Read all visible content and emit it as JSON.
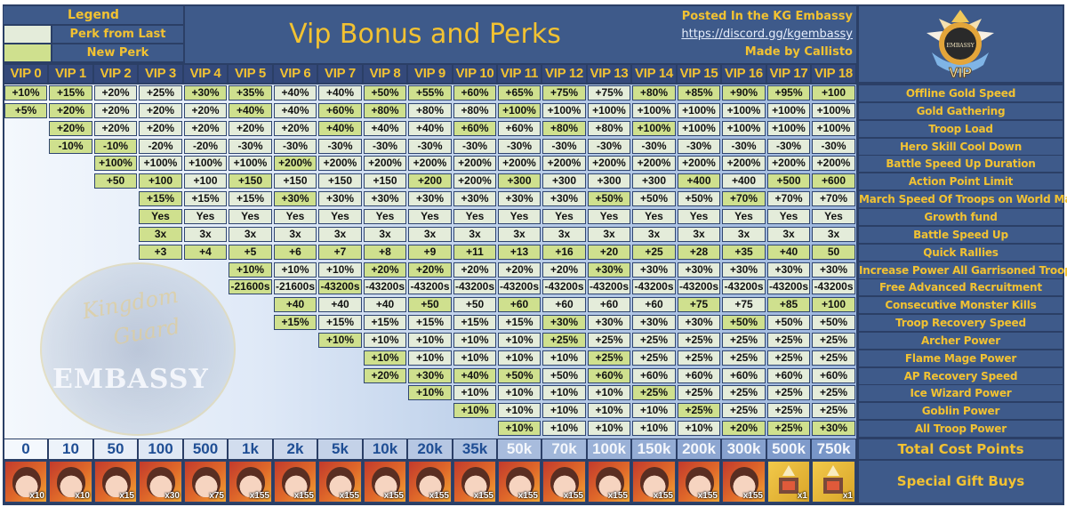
{
  "legend": {
    "title": "Legend",
    "items": [
      {
        "label": "Perk from Last level",
        "color": "#e4ecda"
      },
      {
        "label": "New Perk",
        "color": "#cfe08e"
      }
    ]
  },
  "header": {
    "title": "Vip Bonus and Perks",
    "posted": "Posted In the KG Embassy",
    "link": "https://discord.gg/kgembassy",
    "author": "Made by Callisto",
    "logo_text": "VIP",
    "logo_sub": "EMBASSY"
  },
  "watermark": {
    "line1": "Kingdom",
    "line2": "Guard",
    "line3": "EMBASSY"
  },
  "colors": {
    "new_perk": "#cfe08e",
    "last_level": "#e4ecda",
    "header_bg": "#3e5a8a",
    "accent_text": "#f2c232",
    "cost_text": "#1f4e94"
  },
  "vip_levels": [
    "VIP 0",
    "VIP 1",
    "VIP 2",
    "VIP 3",
    "VIP 4",
    "VIP 5",
    "VIP 6",
    "VIP 7",
    "VIP 8",
    "VIP 9",
    "VIP 10",
    "VIP 11",
    "VIP 12",
    "VIP 13",
    "VIP 14",
    "VIP 15",
    "VIP 16",
    "VIP 17",
    "VIP 18"
  ],
  "perks": [
    {
      "label": "Offline Gold Speed",
      "start": 0,
      "values": [
        "+10%",
        "+15%",
        "+20%",
        "+25%",
        "+30%",
        "+35%",
        "+40%",
        "+40%",
        "+50%",
        "+55%",
        "+60%",
        "+65%",
        "+75%",
        "+75%",
        "+80%",
        "+85%",
        "+90%",
        "+95%",
        "+100"
      ],
      "new": [
        1,
        1,
        0,
        0,
        1,
        1,
        0,
        0,
        1,
        1,
        1,
        1,
        1,
        0,
        1,
        1,
        1,
        1,
        1
      ]
    },
    {
      "label": "Gold Gathering",
      "start": 0,
      "values": [
        "+5%",
        "+20%",
        "+20%",
        "+20%",
        "+20%",
        "+40%",
        "+40%",
        "+60%",
        "+80%",
        "+80%",
        "+80%",
        "+100%",
        "+100%",
        "+100%",
        "+100%",
        "+100%",
        "+100%",
        "+100%",
        "+100%"
      ],
      "new": [
        1,
        1,
        0,
        0,
        0,
        1,
        0,
        1,
        1,
        0,
        0,
        1,
        0,
        0,
        0,
        0,
        0,
        0,
        0
      ]
    },
    {
      "label": "Troop Load",
      "start": 1,
      "values": [
        "+20%",
        "+20%",
        "+20%",
        "+20%",
        "+20%",
        "+20%",
        "+40%",
        "+40%",
        "+40%",
        "+60%",
        "+60%",
        "+80%",
        "+80%",
        "+100%",
        "+100%",
        "+100%",
        "+100%",
        "+100%"
      ],
      "new": [
        1,
        0,
        0,
        0,
        0,
        0,
        1,
        0,
        0,
        1,
        0,
        1,
        0,
        1,
        0,
        0,
        0,
        0
      ]
    },
    {
      "label": "Hero Skill Cool Down",
      "start": 1,
      "values": [
        "-10%",
        "-10%",
        "-20%",
        "-20%",
        "-30%",
        "-30%",
        "-30%",
        "-30%",
        "-30%",
        "-30%",
        "-30%",
        "-30%",
        "-30%",
        "-30%",
        "-30%",
        "-30%",
        "-30%",
        "-30%"
      ],
      "new": [
        1,
        1,
        0,
        0,
        0,
        0,
        0,
        0,
        0,
        0,
        0,
        0,
        0,
        0,
        0,
        0,
        0,
        0
      ]
    },
    {
      "label": "Battle Speed Up Duration",
      "start": 2,
      "values": [
        "+100%",
        "+100%",
        "+100%",
        "+100%",
        "+200%",
        "+200%",
        "+200%",
        "+200%",
        "+200%",
        "+200%",
        "+200%",
        "+200%",
        "+200%",
        "+200%",
        "+200%",
        "+200%",
        "+200%"
      ],
      "new": [
        1,
        0,
        0,
        0,
        1,
        0,
        0,
        0,
        0,
        0,
        0,
        0,
        0,
        0,
        0,
        0,
        0
      ]
    },
    {
      "label": "Action Point Limit",
      "start": 2,
      "values": [
        "+50",
        "+100",
        "+100",
        "+150",
        "+150",
        "+150",
        "+150",
        "+200",
        "+200%",
        "+300",
        "+300",
        "+300",
        "+300",
        "+400",
        "+400",
        "+500",
        "+600"
      ],
      "new": [
        1,
        1,
        0,
        1,
        0,
        0,
        0,
        1,
        0,
        1,
        0,
        0,
        0,
        1,
        0,
        1,
        1
      ]
    },
    {
      "label": "March Speed Of Troops on World Map",
      "start": 3,
      "values": [
        "+15%",
        "+15%",
        "+15%",
        "+30%",
        "+30%",
        "+30%",
        "+30%",
        "+30%",
        "+30%",
        "+30%",
        "+50%",
        "+50%",
        "+50%",
        "+70%",
        "+70%",
        "+70%"
      ],
      "new": [
        1,
        0,
        0,
        1,
        0,
        0,
        0,
        0,
        0,
        0,
        1,
        0,
        0,
        1,
        0,
        0
      ]
    },
    {
      "label": "Growth fund",
      "start": 3,
      "values": [
        "Yes",
        "Yes",
        "Yes",
        "Yes",
        "Yes",
        "Yes",
        "Yes",
        "Yes",
        "Yes",
        "Yes",
        "Yes",
        "Yes",
        "Yes",
        "Yes",
        "Yes",
        "Yes"
      ],
      "new": [
        1,
        0,
        0,
        0,
        0,
        0,
        0,
        0,
        0,
        0,
        0,
        0,
        0,
        0,
        0,
        0
      ]
    },
    {
      "label": "Battle Speed Up",
      "start": 3,
      "values": [
        "3x",
        "3x",
        "3x",
        "3x",
        "3x",
        "3x",
        "3x",
        "3x",
        "3x",
        "3x",
        "3x",
        "3x",
        "3x",
        "3x",
        "3x",
        "3x"
      ],
      "new": [
        1,
        0,
        0,
        0,
        0,
        0,
        0,
        0,
        0,
        0,
        0,
        0,
        0,
        0,
        0,
        0
      ]
    },
    {
      "label": "Quick Rallies",
      "start": 3,
      "values": [
        "+3",
        "+4",
        "+5",
        "+6",
        "+7",
        "+8",
        "+9",
        "+11",
        "+13",
        "+16",
        "+20",
        "+25",
        "+28",
        "+35",
        "+40",
        "50"
      ],
      "new": [
        1,
        1,
        1,
        1,
        1,
        1,
        1,
        1,
        1,
        1,
        1,
        1,
        1,
        1,
        1,
        1
      ]
    },
    {
      "label": "Increase Power All Garrisoned Troops",
      "start": 5,
      "values": [
        "+10%",
        "+10%",
        "+10%",
        "+20%",
        "+20%",
        "+20%",
        "+20%",
        "+20%",
        "+30%",
        "+30%",
        "+30%",
        "+30%",
        "+30%",
        "+30%"
      ],
      "new": [
        1,
        0,
        0,
        1,
        1,
        0,
        0,
        0,
        1,
        0,
        0,
        0,
        0,
        0
      ]
    },
    {
      "label": "Free Advanced Recruitment",
      "start": 5,
      "values": [
        "-21600s",
        "-21600s",
        "-43200s",
        "-43200s",
        "-43200s",
        "-43200s",
        "-43200s",
        "-43200s",
        "-43200s",
        "-43200s",
        "-43200s",
        "-43200s",
        "-43200s",
        "-43200s"
      ],
      "new": [
        1,
        0,
        1,
        0,
        0,
        0,
        0,
        0,
        0,
        0,
        0,
        0,
        0,
        0
      ]
    },
    {
      "label": "Consecutive Monster Kills",
      "start": 6,
      "values": [
        "+40",
        "+40",
        "+40",
        "+50",
        "+50",
        "+60",
        "+60",
        "+60",
        "+60",
        "+75",
        "+75",
        "+85",
        "+100"
      ],
      "new": [
        1,
        0,
        0,
        1,
        0,
        1,
        0,
        0,
        0,
        1,
        0,
        1,
        1
      ]
    },
    {
      "label": "Troop Recovery Speed",
      "start": 6,
      "values": [
        "+15%",
        "+15%",
        "+15%",
        "+15%",
        "+15%",
        "+15%",
        "+30%",
        "+30%",
        "+30%",
        "+30%",
        "+50%",
        "+50%",
        "+50%"
      ],
      "new": [
        1,
        0,
        0,
        0,
        0,
        0,
        1,
        0,
        0,
        0,
        1,
        0,
        0
      ]
    },
    {
      "label": "Archer Power",
      "start": 7,
      "values": [
        "+10%",
        "+10%",
        "+10%",
        "+10%",
        "+10%",
        "+25%",
        "+25%",
        "+25%",
        "+25%",
        "+25%",
        "+25%",
        "+25%"
      ],
      "new": [
        1,
        0,
        0,
        0,
        0,
        1,
        0,
        0,
        0,
        0,
        0,
        0
      ]
    },
    {
      "label": "Flame Mage Power",
      "start": 8,
      "values": [
        "+10%",
        "+10%",
        "+10%",
        "+10%",
        "+10%",
        "+25%",
        "+25%",
        "+25%",
        "+25%",
        "+25%",
        "+25%"
      ],
      "new": [
        1,
        0,
        0,
        0,
        0,
        1,
        0,
        0,
        0,
        0,
        0
      ]
    },
    {
      "label": "AP Recovery Speed",
      "start": 8,
      "values": [
        "+20%",
        "+30%",
        "+40%",
        "+50%",
        "+50%",
        "+60%",
        "+60%",
        "+60%",
        "+60%",
        "+60%",
        "+60%"
      ],
      "new": [
        1,
        1,
        1,
        1,
        0,
        1,
        0,
        0,
        0,
        0,
        0
      ]
    },
    {
      "label": "Ice Wizard Power",
      "start": 9,
      "values": [
        "+10%",
        "+10%",
        "+10%",
        "+10%",
        "+10%",
        "+25%",
        "+25%",
        "+25%",
        "+25%",
        "+25%"
      ],
      "new": [
        1,
        0,
        0,
        0,
        0,
        1,
        0,
        0,
        0,
        0
      ]
    },
    {
      "label": "Goblin Power",
      "start": 10,
      "values": [
        "+10%",
        "+10%",
        "+10%",
        "+10%",
        "+10%",
        "+25%",
        "+25%",
        "+25%",
        "+25%"
      ],
      "new": [
        1,
        0,
        0,
        0,
        0,
        1,
        0,
        0,
        0
      ]
    },
    {
      "label": "All Troop Power",
      "start": 11,
      "values": [
        "+10%",
        "+10%",
        "+10%",
        "+10%",
        "+10%",
        "+20%",
        "+25%",
        "+30%"
      ],
      "new": [
        1,
        0,
        0,
        0,
        0,
        1,
        1,
        1
      ]
    }
  ],
  "cost": {
    "label": "Total Cost Points",
    "values": [
      "0",
      "10",
      "50",
      "100",
      "500",
      "1k",
      "2k",
      "5k",
      "10k",
      "20k",
      "35k",
      "50k",
      "70k",
      "100k",
      "150k",
      "200k",
      "300k",
      "500k",
      "750k"
    ]
  },
  "gifts": {
    "label": "Special Gift Buys",
    "items": [
      {
        "type": "hero",
        "qty": "x10"
      },
      {
        "type": "hero",
        "qty": "x10"
      },
      {
        "type": "hero",
        "qty": "x15"
      },
      {
        "type": "hero",
        "qty": "x30"
      },
      {
        "type": "hero",
        "qty": "x75"
      },
      {
        "type": "hero",
        "qty": "x155"
      },
      {
        "type": "hero",
        "qty": "x155"
      },
      {
        "type": "hero",
        "qty": "x155"
      },
      {
        "type": "hero",
        "qty": "x155"
      },
      {
        "type": "hero",
        "qty": "x155"
      },
      {
        "type": "hero",
        "qty": "x155"
      },
      {
        "type": "hero",
        "qty": "x155"
      },
      {
        "type": "hero",
        "qty": "x155"
      },
      {
        "type": "hero",
        "qty": "x155"
      },
      {
        "type": "hero",
        "qty": "x155"
      },
      {
        "type": "hero",
        "qty": "x155"
      },
      {
        "type": "hero",
        "qty": "x155"
      },
      {
        "type": "item",
        "qty": "x1"
      },
      {
        "type": "item",
        "qty": "x1"
      }
    ]
  }
}
